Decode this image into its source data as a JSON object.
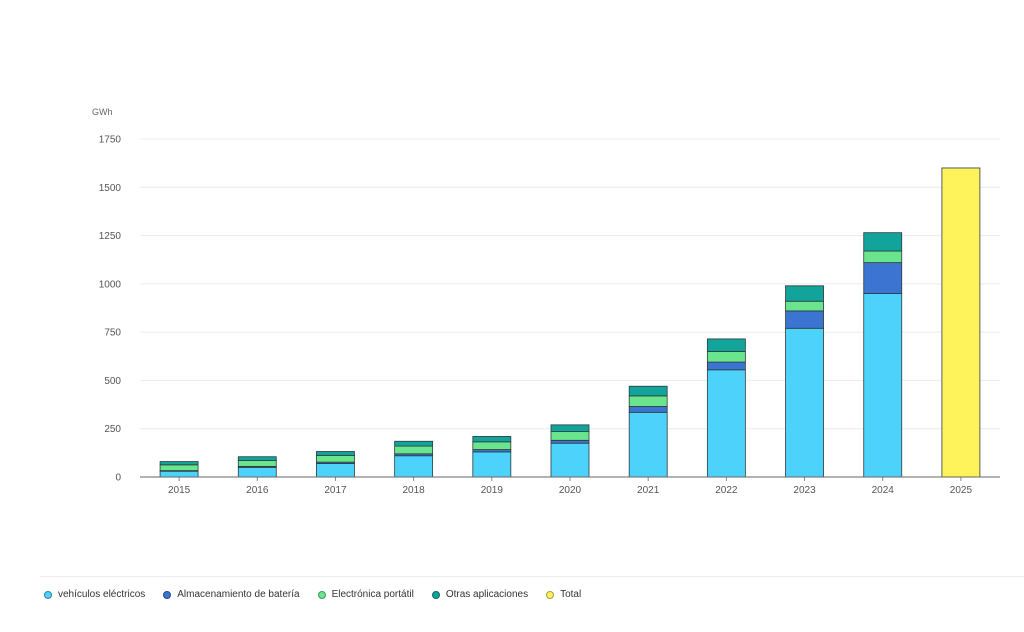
{
  "chart_data": {
    "type": "bar",
    "stacked": true,
    "unit_label": "GWh",
    "title": "",
    "xlabel": "",
    "ylabel": "",
    "ylim": [
      0,
      1750
    ],
    "yticks": [
      0,
      250,
      500,
      750,
      1000,
      1250,
      1500,
      1750
    ],
    "categories": [
      "2015",
      "2016",
      "2017",
      "2018",
      "2019",
      "2020",
      "2021",
      "2022",
      "2023",
      "2024",
      "2025"
    ],
    "grid": "horizontal",
    "legend_position": "bottom-left",
    "series": [
      {
        "name": "vehículos eléctricos",
        "color": "#4dd2fb",
        "values": [
          30,
          50,
          70,
          110,
          130,
          175,
          335,
          555,
          770,
          950,
          0
        ]
      },
      {
        "name": "Almacenamiento de batería",
        "color": "#3b74d1",
        "values": [
          3,
          5,
          7,
          10,
          12,
          15,
          30,
          40,
          90,
          160,
          0
        ]
      },
      {
        "name": "Electrónica portátil",
        "color": "#6ae58e",
        "values": [
          30,
          30,
          35,
          40,
          40,
          45,
          55,
          55,
          50,
          60,
          0
        ]
      },
      {
        "name": "Otras aplicaciones",
        "color": "#12a39b",
        "values": [
          17,
          20,
          20,
          25,
          28,
          35,
          50,
          65,
          80,
          95,
          0
        ]
      },
      {
        "name": "Total",
        "color": "#fff35c",
        "values": [
          0,
          0,
          0,
          0,
          0,
          0,
          0,
          0,
          0,
          0,
          1600
        ]
      }
    ]
  },
  "legend_swatch_colors": {
    "vehiculos": "#4dd2fb",
    "almacenamiento": "#3b74d1",
    "electronica": "#6ae58e",
    "otras": "#12a39b",
    "total": "#fff35c"
  }
}
